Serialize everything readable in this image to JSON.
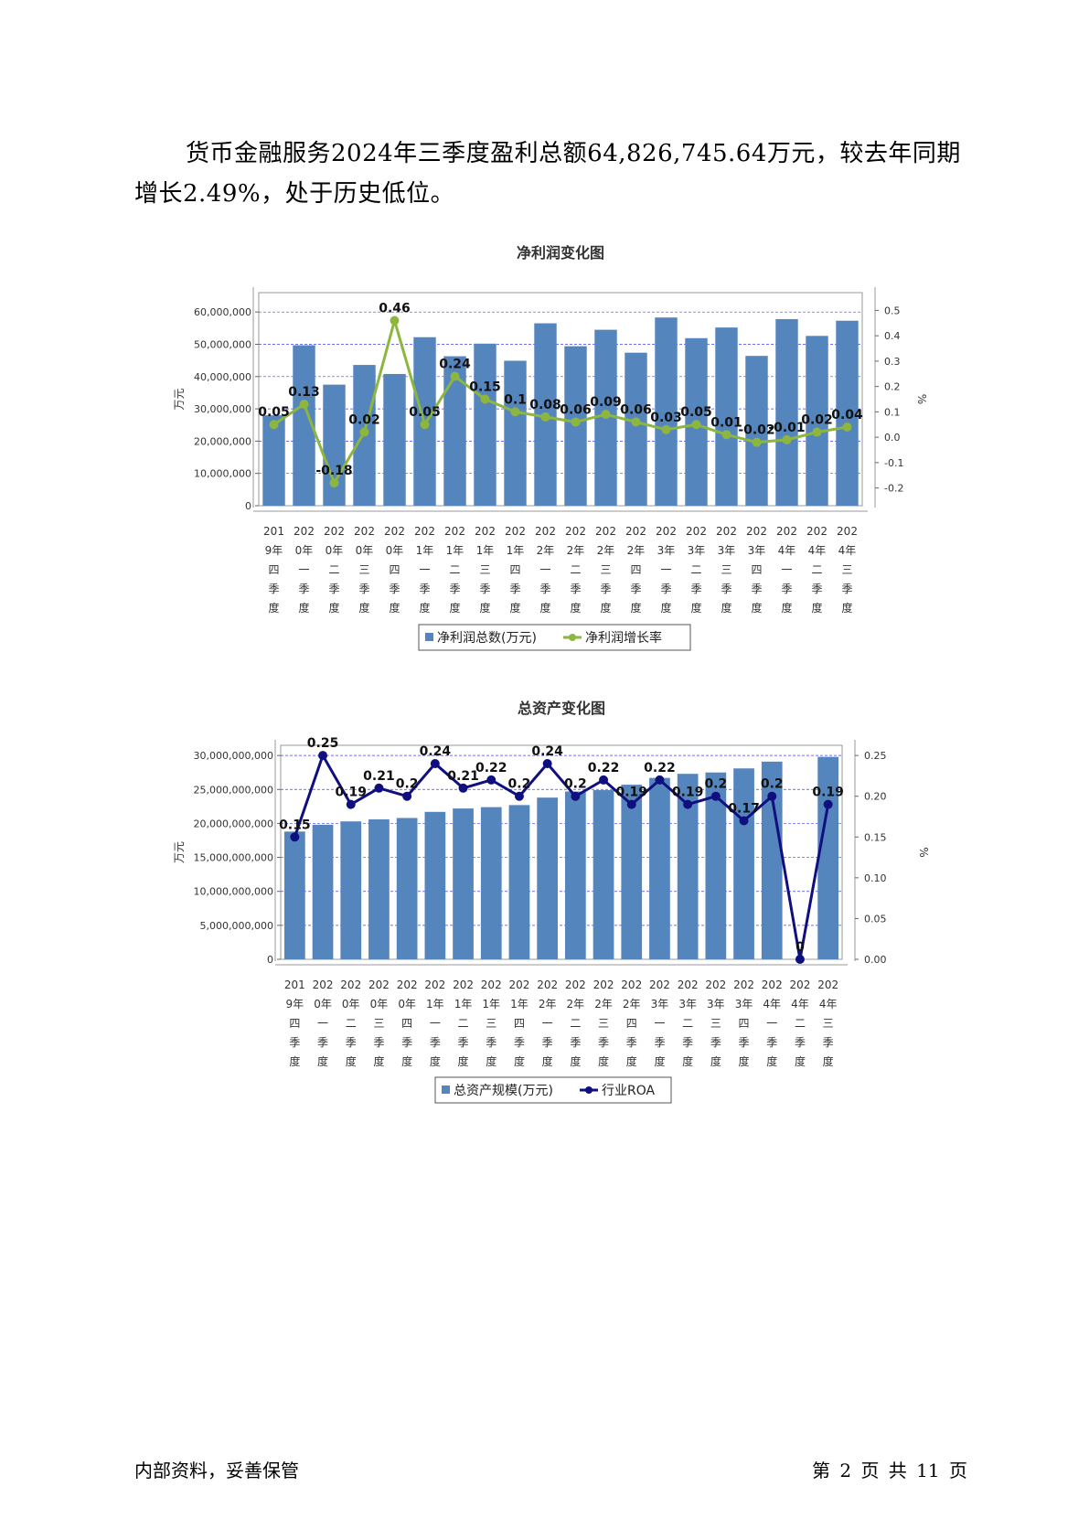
{
  "paragraph": "货币金融服务2024年三季度盈利总额64,826,745.64万元，较去年同期增长2.49%，处于历史低位。",
  "footer": {
    "left": "内部资料，妥善保管",
    "right": "第 2 页   共 11 页"
  },
  "colors": {
    "bar": "#5585bd",
    "line1": "#8db63f",
    "line2": "#0f0f7f",
    "grid": "#4040ff"
  },
  "chart_data": [
    {
      "type": "bar",
      "title": "净利润变化图",
      "ylabel": "万元",
      "y2label": "%",
      "categories": [
        "2019年四季度",
        "2020年一季度",
        "2020年二季度",
        "2020年三季度",
        "2020年四季度",
        "2021年一季度",
        "2021年二季度",
        "2021年三季度",
        "2021年四季度",
        "2022年一季度",
        "2022年二季度",
        "2022年三季度",
        "2022年四季度",
        "2023年一季度",
        "2023年二季度",
        "2023年三季度",
        "2023年四季度",
        "2024年一季度",
        "2024年二季度",
        "2024年三季度"
      ],
      "ylim": [
        0,
        66000000
      ],
      "yticks": [
        "60,000,000",
        "50,000,000",
        "40,000,000",
        "30,000,000",
        "20,000,000",
        "10,000,000",
        "0"
      ],
      "y2lim": [
        -0.27,
        0.57
      ],
      "y2ticks": [
        "0.5",
        "0.4",
        "0.3",
        "0.2",
        "0.1",
        "0.0",
        "-0.1",
        "-0.2"
      ],
      "grid": true,
      "legend_position": "bottom",
      "series": [
        {
          "name": "净利润总数(万元)",
          "kind": "bar",
          "axis": "left",
          "values": [
            28000000,
            49700000,
            37500000,
            43600000,
            40800000,
            52200000,
            46300000,
            50200000,
            44900000,
            56500000,
            49400000,
            54500000,
            47400000,
            58300000,
            51900000,
            55200000,
            46400000,
            57800000,
            52600000,
            57300000
          ]
        },
        {
          "name": "净利润增长率",
          "kind": "line",
          "axis": "right",
          "values": [
            0.05,
            0.13,
            -0.18,
            0.02,
            0.46,
            0.05,
            0.24,
            0.15,
            0.1,
            0.08,
            0.06,
            0.09,
            0.06,
            0.03,
            0.05,
            0.01,
            -0.02,
            -0.01,
            0.02,
            0.04
          ],
          "labels": [
            "0.05",
            "0.13",
            "-0.18",
            "0.02",
            "0.46",
            "0.05",
            "0.24",
            "0.15",
            "0.1",
            "0.08",
            "0.06",
            "0.09",
            "0.06",
            "0.03",
            "0.05",
            "0.01",
            "-0.02",
            "-0.01",
            "0.02",
            "0.04"
          ]
        }
      ]
    },
    {
      "type": "bar",
      "title": "总资产变化图",
      "ylabel": "万元",
      "y2label": "%",
      "categories": [
        "2019年四季度",
        "2020年一季度",
        "2020年二季度",
        "2020年三季度",
        "2020年四季度",
        "2021年一季度",
        "2021年二季度",
        "2021年三季度",
        "2021年四季度",
        "2022年一季度",
        "2022年二季度",
        "2022年三季度",
        "2022年四季度",
        "2023年一季度",
        "2023年二季度",
        "2023年三季度",
        "2023年四季度",
        "2024年一季度",
        "2024年二季度",
        "2024年三季度"
      ],
      "ylim": [
        0,
        31500000000
      ],
      "yticks": [
        "30,000,000,000",
        "25,000,000,000",
        "20,000,000,000",
        "15,000,000,000",
        "10,000,000,000",
        "5,000,000,000",
        "0"
      ],
      "y2lim": [
        0,
        0.2625
      ],
      "y2ticks": [
        "0.25",
        "0.20",
        "0.15",
        "0.10",
        "0.05",
        "0.00"
      ],
      "grid": true,
      "legend_position": "bottom",
      "series": [
        {
          "name": "总资产规模(万元)",
          "kind": "bar",
          "axis": "left",
          "values": [
            18800000000,
            19800000000,
            20300000000,
            20600000000,
            20800000000,
            21700000000,
            22200000000,
            22400000000,
            22700000000,
            23800000000,
            24700000000,
            24900000000,
            25700000000,
            26700000000,
            27300000000,
            27500000000,
            28100000000,
            29100000000,
            0,
            29800000000
          ]
        },
        {
          "name": "行业ROA",
          "kind": "line",
          "axis": "right",
          "values": [
            0.15,
            0.25,
            0.19,
            0.21,
            0.2,
            0.24,
            0.21,
            0.22,
            0.2,
            0.24,
            0.2,
            0.22,
            0.19,
            0.22,
            0.19,
            0.2,
            0.17,
            0.2,
            0,
            0.19
          ],
          "labels": [
            "0.15",
            "0.25",
            "0.19",
            "0.21",
            "0.2",
            "0.24",
            "0.21",
            "0.22",
            "0.2",
            "0.24",
            "0.2",
            "0.22",
            "0.19",
            "0.22",
            "0.19",
            "0.2",
            "0.17",
            "0.2",
            "0",
            "0.19"
          ]
        }
      ]
    }
  ]
}
